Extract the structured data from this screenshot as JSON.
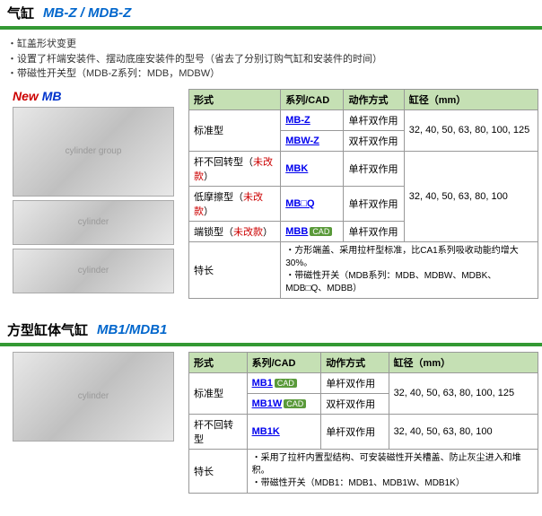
{
  "section1": {
    "title_cn": "气缸",
    "title_model": "MB-Z / MDB-Z",
    "notes": [
      "缸盖形状变更",
      "设置了杆端安装件、摆动底座安装件的型号（省去了分别订购气缸和安装件的时间）",
      "带磁性开关型（MDB-Z系列：MDB，MDBW）"
    ],
    "new_label": "New MB",
    "headers": [
      "形式",
      "系列/CAD",
      "动作方式",
      "缸径（mm）"
    ],
    "rows": [
      {
        "type": "标准型",
        "series": "MB-Z",
        "cad": false,
        "action": "单杆双作用",
        "bore": "32, 40, 50, 63, 80, 100, 125",
        "rowspan_type": 2,
        "rowspan_bore": 2
      },
      {
        "type": "",
        "series": "MBW-Z",
        "cad": false,
        "action": "双杆双作用",
        "bore": ""
      },
      {
        "type": "杆不回转型（未改款）",
        "series": "MBK",
        "cad": false,
        "action": "单杆双作用",
        "bore": "32, 40, 50, 63, 80, 100",
        "rowspan_bore": 3
      },
      {
        "type": "低摩擦型（未改款）",
        "series": "MB□Q",
        "cad": false,
        "action": "单杆双作用",
        "bore": ""
      },
      {
        "type": "端锁型（未改款）",
        "series": "MBB",
        "cad": true,
        "action": "单杆双作用",
        "bore": ""
      }
    ],
    "feature_label": "特长",
    "features": [
      "方形端盖、采用拉杆型标准，比CA1系列吸收动能约增大30%。",
      "带磁性开关（MDB系列：MDB、MDBW、MDBK、MDB□Q、MDBB）"
    ]
  },
  "section2": {
    "title_cn": "方型缸体气缸",
    "title_model": "MB1/MDB1",
    "headers": [
      "形式",
      "系列/CAD",
      "动作方式",
      "缸径（mm）"
    ],
    "rows": [
      {
        "type": "标准型",
        "series": "MB1",
        "cad": true,
        "action": "单杆双作用",
        "bore": "32, 40, 50, 63, 80, 100, 125",
        "rowspan_type": 2,
        "rowspan_bore": 2
      },
      {
        "type": "",
        "series": "MB1W",
        "cad": true,
        "action": "双杆双作用",
        "bore": ""
      },
      {
        "type": "杆不回转型",
        "series": "MB1K",
        "cad": false,
        "action": "单杆双作用",
        "bore": "32, 40, 50, 63, 80, 100"
      }
    ],
    "feature_label": "特长",
    "features": [
      "采用了拉杆内置型结构、可安装磁性开关槽盖、防止灰尘进入和堆积。",
      "带磁性开关（MDB1：MDB1、MDB1W、MDB1K）"
    ]
  }
}
